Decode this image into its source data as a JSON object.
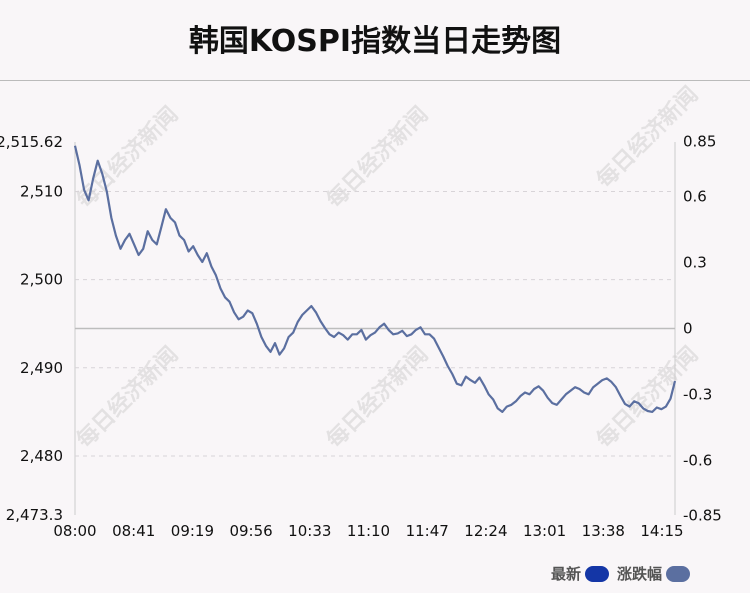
{
  "title": "韩国KOSPI指数当日走势图",
  "watermark": "每日经济新闻",
  "legend": [
    {
      "label": "最新",
      "color": "#1436a6"
    },
    {
      "label": "涨跌幅",
      "color": "#5b6fa0"
    }
  ],
  "chart_data": {
    "type": "line",
    "title": "韩国KOSPI指数当日走势图",
    "x_ticks": [
      "08:00",
      "08:41",
      "09:19",
      "09:56",
      "10:33",
      "11:10",
      "11:47",
      "12:24",
      "13:01",
      "13:38",
      "14:15"
    ],
    "y_ticks_left": [
      "2,515.62",
      "2,510",
      "2,500",
      "2,490",
      "2,480",
      "2,473.3"
    ],
    "y_ticks_right": [
      "0.85",
      "0.6",
      "0.3",
      "0",
      "-0.3",
      "-0.6",
      "-0.85"
    ],
    "ylim": [
      2473.3,
      2515.62
    ],
    "baseline": 2494.46,
    "line_color": "#5b6fa0",
    "series": [
      {
        "name": "最新",
        "values": [
          2515.2,
          2513.0,
          2510.2,
          2509.0,
          2511.5,
          2513.5,
          2512.0,
          2510.0,
          2507.0,
          2505.0,
          2503.5,
          2504.5,
          2505.2,
          2504.0,
          2502.8,
          2503.5,
          2505.5,
          2504.5,
          2504.0,
          2506.0,
          2508.0,
          2507.0,
          2506.5,
          2505.0,
          2504.5,
          2503.2,
          2503.8,
          2502.8,
          2502.0,
          2503.0,
          2501.5,
          2500.5,
          2499.0,
          2498.0,
          2497.5,
          2496.3,
          2495.5,
          2495.8,
          2496.5,
          2496.2,
          2495.0,
          2493.5,
          2492.5,
          2491.8,
          2492.8,
          2491.5,
          2492.2,
          2493.5,
          2494.0,
          2495.2,
          2496.0,
          2496.5,
          2497.0,
          2496.3,
          2495.3,
          2494.5,
          2493.8,
          2493.5,
          2494.0,
          2493.7,
          2493.2,
          2493.8,
          2493.8,
          2494.3,
          2493.2,
          2493.7,
          2494.0,
          2494.6,
          2495.0,
          2494.3,
          2493.8,
          2493.9,
          2494.2,
          2493.6,
          2493.8,
          2494.3,
          2494.6,
          2493.8,
          2493.8,
          2493.3,
          2492.3,
          2491.3,
          2490.2,
          2489.3,
          2488.2,
          2488.0,
          2489.0,
          2488.6,
          2488.3,
          2488.9,
          2488.0,
          2487.0,
          2486.4,
          2485.4,
          2485.0,
          2485.6,
          2485.8,
          2486.2,
          2486.8,
          2487.2,
          2487.0,
          2487.6,
          2487.9,
          2487.4,
          2486.6,
          2486.0,
          2485.8,
          2486.4,
          2487.0,
          2487.4,
          2487.8,
          2487.6,
          2487.2,
          2487.0,
          2487.8,
          2488.2,
          2488.6,
          2488.8,
          2488.4,
          2487.8,
          2486.8,
          2485.9,
          2485.6,
          2486.2,
          2486.0,
          2485.4,
          2485.1,
          2485.0,
          2485.5,
          2485.3,
          2485.6,
          2486.5,
          2488.5
        ],
        "point_count": 133
      }
    ]
  }
}
